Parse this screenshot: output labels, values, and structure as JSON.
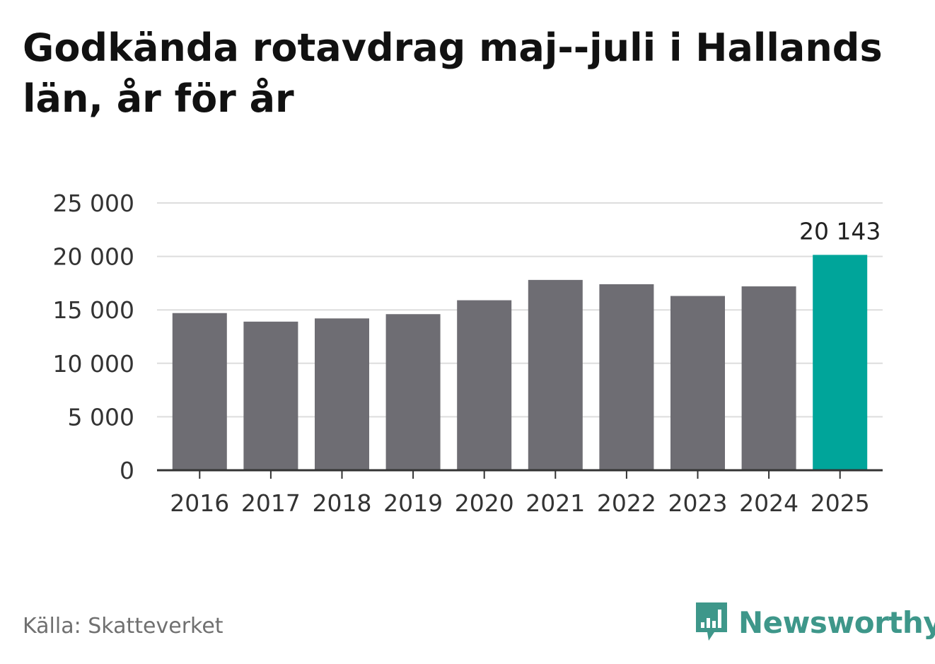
{
  "header": {
    "title": "Godkända rotavdrag maj--juli i Hallands län, år för år"
  },
  "chart_data": {
    "type": "bar",
    "title": "Godkända rotavdrag maj--juli i Hallands län, år för år",
    "categories": [
      "2016",
      "2017",
      "2018",
      "2019",
      "2020",
      "2021",
      "2022",
      "2023",
      "2024",
      "2025"
    ],
    "values": [
      14700,
      13900,
      14200,
      14600,
      15900,
      17800,
      17400,
      16300,
      17200,
      20143
    ],
    "ylim": [
      0,
      25000
    ],
    "yticks": [
      0,
      5000,
      10000,
      15000,
      20000,
      25000
    ],
    "ytick_labels": [
      "0",
      "5 000",
      "10 000",
      "15 000",
      "20 000",
      "25 000"
    ],
    "data_labels": [
      {
        "category": "2025",
        "text": "20 143"
      }
    ],
    "grid": true,
    "legend": "none",
    "colors": {
      "bar": "#6e6d73",
      "highlight": "#00a59a",
      "grid": "#dddddd",
      "axis": "#333333"
    },
    "highlight_category": "2025"
  },
  "footer": {
    "source": "Källa: Skatteverket",
    "brand": "Newsworthy",
    "brand_icon": "newsworthy-logo-icon",
    "brand_color": "#3e978a"
  }
}
